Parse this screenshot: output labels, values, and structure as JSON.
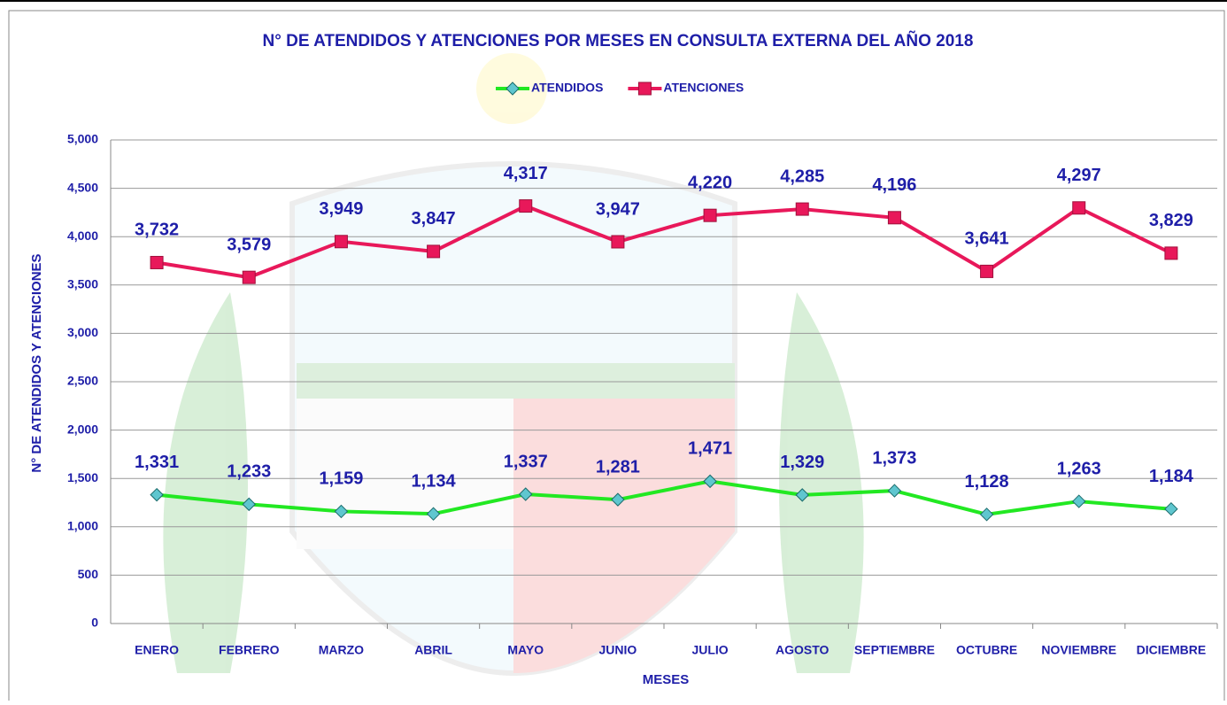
{
  "chart_data": {
    "type": "line",
    "title": "N° DE ATENDIDOS Y ATENCIONES POR MESES EN CONSULTA EXTERNA DEL AÑO 2018",
    "x_label": "MESES",
    "y_label": "N° DE ATENDIDOS Y ATENCIONES",
    "categories": [
      "ENERO",
      "FEBRERO",
      "MARZO",
      "ABRIL",
      "MAYO",
      "JUNIO",
      "JULIO",
      "AGOSTO",
      "SEPTIEMBRE",
      "OCTUBRE",
      "NOVIEMBRE",
      "DICIEMBRE"
    ],
    "series": [
      {
        "name": "ATENDIDOS",
        "color": "#22e822",
        "marker_color": "#5fc6cf",
        "values": [
          1331,
          1233,
          1159,
          1134,
          1337,
          1281,
          1471,
          1329,
          1373,
          1128,
          1263,
          1184
        ],
        "value_labels": [
          "1,331",
          "1,233",
          "1,159",
          "1,134",
          "1,337",
          "1,281",
          "1,471",
          "1,329",
          "1,373",
          "1,128",
          "1,263",
          "1,184"
        ]
      },
      {
        "name": "ATENCIONES",
        "color": "#e8185a",
        "marker_color": "#e8185a",
        "values": [
          3732,
          3579,
          3949,
          3847,
          4317,
          3947,
          4220,
          4285,
          4196,
          3641,
          4297,
          3829
        ],
        "value_labels": [
          "3,732",
          "3,579",
          "3,949",
          "3,847",
          "4,317",
          "3,947",
          "4,220",
          "4,285",
          "4,196",
          "3,641",
          "4,297",
          "3,829"
        ]
      }
    ],
    "ylim": [
      0,
      5000
    ],
    "yticks": [
      0,
      500,
      {
        "value": 1000,
        "label": "1,000"
      },
      {
        "value": 1500,
        "label": "1,500"
      },
      {
        "value": 2000,
        "label": "2,000"
      },
      {
        "value": 2500,
        "label": "2,500"
      },
      {
        "value": 3000,
        "label": "3,000"
      },
      {
        "value": 3500,
        "label": "3,500"
      },
      {
        "value": 4000,
        "label": "4,000"
      },
      {
        "value": 4500,
        "label": "4,500"
      },
      {
        "value": 5000,
        "label": "5,000"
      }
    ],
    "grid": true,
    "legend": "top"
  }
}
